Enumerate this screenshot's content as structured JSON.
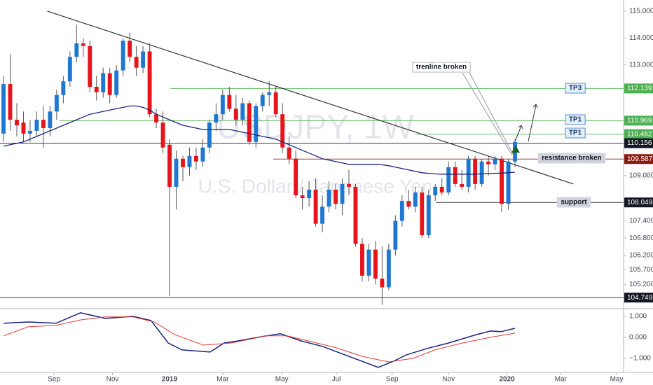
{
  "chart_data": [
    {
      "type": "candlestick",
      "title": "USDJPY, 1W",
      "subtitle": "U.S. Dollar / Japanese Yen",
      "up_color": "#1e78d2",
      "down_color": "#e8141b",
      "log_scale": true,
      "ylim": [
        104.37,
        115.42
      ],
      "xlim": [
        -0.53,
        93.35
      ],
      "yticks": [
        {
          "value": 115,
          "label": "115.000"
        },
        {
          "value": 114,
          "label": "114.000"
        },
        {
          "value": 113,
          "label": "113.000"
        },
        {
          "value": 109,
          "label": "109.000"
        },
        {
          "value": 107.4,
          "label": "107.400"
        },
        {
          "value": 106.8,
          "label": "106.800"
        },
        {
          "value": 106.2,
          "label": "106.200"
        },
        {
          "value": 105.7,
          "label": "105.700"
        },
        {
          "value": 105.2,
          "label": "105.200"
        }
      ],
      "xticks": [
        {
          "value": 7.6,
          "label": "Sep"
        },
        {
          "value": 16.4,
          "label": "Nov"
        },
        {
          "value": 25.0,
          "label": "2019"
        },
        {
          "value": 33.0,
          "label": "Mar"
        },
        {
          "value": 41.9,
          "label": "May"
        },
        {
          "value": 50.1,
          "label": "Jul"
        },
        {
          "value": 58.5,
          "label": "Sep"
        },
        {
          "value": 67.0,
          "label": "Nov"
        },
        {
          "value": 75.8,
          "label": "2020"
        },
        {
          "value": 83.9,
          "label": "Mar"
        },
        {
          "value": 92.3,
          "label": "May"
        }
      ],
      "open": [
        110.5,
        112.3,
        111.0,
        110.9,
        110.5,
        110.6,
        111.0,
        110.7,
        111.3,
        111.9,
        112.4,
        113.3,
        113.8,
        113.7,
        112.2,
        112.0,
        112.7,
        111.9,
        112.8,
        113.9,
        113.3,
        112.9,
        113.5,
        111.2,
        110.9,
        110.1,
        108.6,
        109.6,
        109.3,
        109.7,
        109.5,
        110.0,
        110.9,
        111.2,
        111.9,
        111.4,
        111.0,
        111.6,
        110.2,
        111.5,
        111.9,
        112.0,
        111.2,
        110.0,
        109.6,
        108.3,
        108.2,
        108.5,
        107.3,
        107.9,
        108.5,
        108.0,
        108.7,
        108.6,
        106.6,
        105.5,
        106.4,
        105.4,
        105.1,
        106.4,
        107.4,
        108.1,
        107.9,
        108.4,
        106.9,
        108.3,
        108.6,
        108.4,
        109.3,
        108.7,
        108.6,
        109.6,
        108.7,
        109.5,
        109.4,
        109.6,
        108.0,
        109.5
      ],
      "high": [
        112.6,
        113.4,
        111.6,
        111.3,
        111.0,
        111.3,
        111.5,
        111.5,
        112.1,
        112.6,
        113.5,
        114.5,
        114.0,
        113.9,
        112.6,
        112.9,
        112.9,
        113.0,
        114.0,
        114.2,
        113.7,
        113.7,
        113.8,
        111.4,
        111.3,
        110.3,
        109.9,
        109.7,
        110.0,
        110.0,
        110.3,
        111.0,
        111.6,
        112.1,
        112.2,
        111.9,
        111.8,
        111.7,
        111.6,
        112.0,
        112.4,
        112.2,
        111.6,
        110.4,
        109.9,
        108.6,
        108.8,
        108.9,
        108.3,
        108.8,
        108.7,
        108.9,
        109.2,
        108.7,
        106.8,
        106.6,
        106.7,
        106.5,
        106.6,
        107.6,
        108.3,
        108.5,
        108.6,
        108.6,
        108.5,
        108.7,
        108.9,
        109.5,
        109.5,
        109.2,
        109.7,
        109.7,
        109.6,
        109.7,
        109.7,
        109.7,
        109.6,
        110.3
      ],
      "low": [
        110.2,
        110.6,
        110.4,
        110.2,
        110.2,
        110.4,
        110.0,
        110.4,
        111.0,
        111.6,
        112.2,
        113.1,
        113.3,
        112.0,
        111.7,
        111.8,
        111.6,
        111.8,
        112.6,
        113.1,
        112.6,
        112.7,
        111.1,
        110.7,
        109.8,
        104.8,
        107.8,
        108.8,
        109.0,
        109.2,
        109.3,
        109.8,
        110.6,
        111.0,
        111.3,
        110.8,
        110.8,
        110.1,
        110.0,
        111.3,
        111.5,
        111.1,
        109.8,
        109.4,
        108.2,
        107.8,
        107.9,
        107.2,
        107.0,
        107.7,
        107.8,
        107.6,
        108.3,
        106.5,
        105.3,
        105.3,
        105.2,
        104.5,
        105.0,
        106.2,
        107.2,
        107.8,
        107.7,
        106.8,
        106.8,
        108.1,
        108.3,
        108.3,
        108.6,
        108.5,
        108.4,
        108.5,
        108.6,
        109.0,
        109.2,
        107.7,
        107.8,
        109.3
      ],
      "close": [
        112.3,
        111.0,
        110.8,
        110.5,
        110.6,
        111.0,
        110.7,
        111.3,
        111.9,
        112.4,
        113.3,
        113.8,
        113.7,
        112.2,
        112.0,
        112.7,
        111.9,
        112.8,
        113.9,
        113.3,
        112.9,
        113.5,
        111.2,
        110.9,
        110.0,
        108.6,
        109.6,
        109.3,
        109.7,
        109.5,
        110.0,
        110.9,
        111.2,
        111.9,
        111.4,
        111.0,
        111.6,
        110.2,
        111.5,
        111.9,
        112.0,
        111.2,
        110.0,
        109.6,
        108.3,
        108.2,
        108.5,
        107.3,
        107.9,
        108.5,
        108.0,
        108.7,
        108.6,
        106.6,
        105.5,
        106.4,
        105.4,
        105.1,
        106.4,
        107.4,
        108.1,
        107.9,
        108.4,
        106.9,
        108.3,
        108.6,
        108.4,
        109.3,
        108.7,
        108.6,
        109.6,
        108.7,
        109.5,
        109.4,
        109.6,
        108.0,
        109.5,
        110.2
      ],
      "ma": {
        "color": "#1a237e",
        "values": [
          110.05,
          110.1,
          110.15,
          110.2,
          110.3,
          110.4,
          110.5,
          110.6,
          110.7,
          110.8,
          110.9,
          111.0,
          111.1,
          111.2,
          111.25,
          111.3,
          111.35,
          111.4,
          111.45,
          111.5,
          111.5,
          111.45,
          111.35,
          111.2,
          111.1,
          111.0,
          110.9,
          110.8,
          110.75,
          110.7,
          110.65,
          110.65,
          110.65,
          110.65,
          110.65,
          110.6,
          110.55,
          110.5,
          110.45,
          110.4,
          110.35,
          110.3,
          110.2,
          110.1,
          110.0,
          109.9,
          109.8,
          109.7,
          109.6,
          109.55,
          109.5,
          109.45,
          109.4,
          109.4,
          109.4,
          109.4,
          109.4,
          109.38,
          109.35,
          109.3,
          109.25,
          109.2,
          109.15,
          109.1,
          109.08,
          109.06,
          109.05,
          109.05,
          109.05,
          109.05,
          109.05,
          109.05,
          109.06,
          109.07,
          109.08,
          109.09,
          109.1,
          109.12
        ]
      },
      "trendline": {
        "color": "#333333",
        "x": [
          6.6,
          85.8
        ],
        "y": [
          115.0,
          108.7
        ]
      },
      "levels": [
        {
          "value": 112.139,
          "label": "112.139",
          "color": "#4caf50",
          "from": 25.1
        },
        {
          "value": 110.969,
          "label": "110.969",
          "color": "#4caf50",
          "from": 8.4
        },
        {
          "value": 110.482,
          "label": "110.482",
          "color": "#4caf50",
          "from": 62.0
        },
        {
          "value": 110.156,
          "label": "110.156",
          "color": "#131722",
          "from": -0.53
        },
        {
          "value": 109.587,
          "label": "109.587",
          "color": "#8b1a10",
          "from": 40.6
        },
        {
          "value": 108.049,
          "label": "108.049",
          "color": "#131722",
          "from": 65.1
        },
        {
          "value": 104.749,
          "label": "104.749",
          "color": "#131722",
          "from": -0.53
        }
      ],
      "annotations": [
        "trenline broken",
        "TP3",
        "TP1",
        "TP1",
        "resistance broken",
        "support"
      ]
    },
    {
      "type": "line",
      "ylim": [
        -1.67,
        1.23
      ],
      "yticks": [
        {
          "value": 1,
          "label": "1.000"
        },
        {
          "value": 0,
          "label": "0.000"
        },
        {
          "value": -1,
          "label": "−1.000"
        }
      ],
      "series": [
        {
          "color": "#1a237e",
          "x": [
            0,
            3.7,
            7.9,
            11.6,
            15.3,
            19.5,
            22.2,
            24.8,
            26.9,
            31.1,
            33.2,
            35.3,
            39.6,
            41.7,
            44.8,
            48.0,
            52.2,
            56.4,
            58.5,
            60.7,
            63.8,
            67.0,
            71.2,
            73.3,
            74.9,
            77
          ],
          "values": [
            0.67,
            0.73,
            0.67,
            1.17,
            0.9,
            1.0,
            0.8,
            -0.27,
            -0.6,
            -0.7,
            -0.27,
            -0.17,
            0.07,
            0.17,
            -0.17,
            -0.43,
            -0.93,
            -1.43,
            -1.17,
            -0.83,
            -0.53,
            -0.27,
            0.13,
            0.3,
            0.27,
            0.43
          ]
        },
        {
          "color": "#e53935",
          "x": [
            0,
            3.7,
            7.9,
            11.6,
            15.3,
            19.5,
            22.7,
            25.8,
            30.1,
            34.3,
            39.6,
            42.7,
            45.9,
            50.1,
            54.3,
            58.0,
            61.7,
            64.9,
            69.1,
            73.3,
            77
          ],
          "values": [
            0.07,
            0.5,
            0.57,
            0.83,
            0.97,
            0.97,
            0.73,
            0.13,
            -0.37,
            -0.27,
            0.07,
            0.07,
            -0.17,
            -0.5,
            -0.93,
            -1.17,
            -1.0,
            -0.6,
            -0.27,
            0,
            0.2
          ]
        }
      ]
    }
  ]
}
